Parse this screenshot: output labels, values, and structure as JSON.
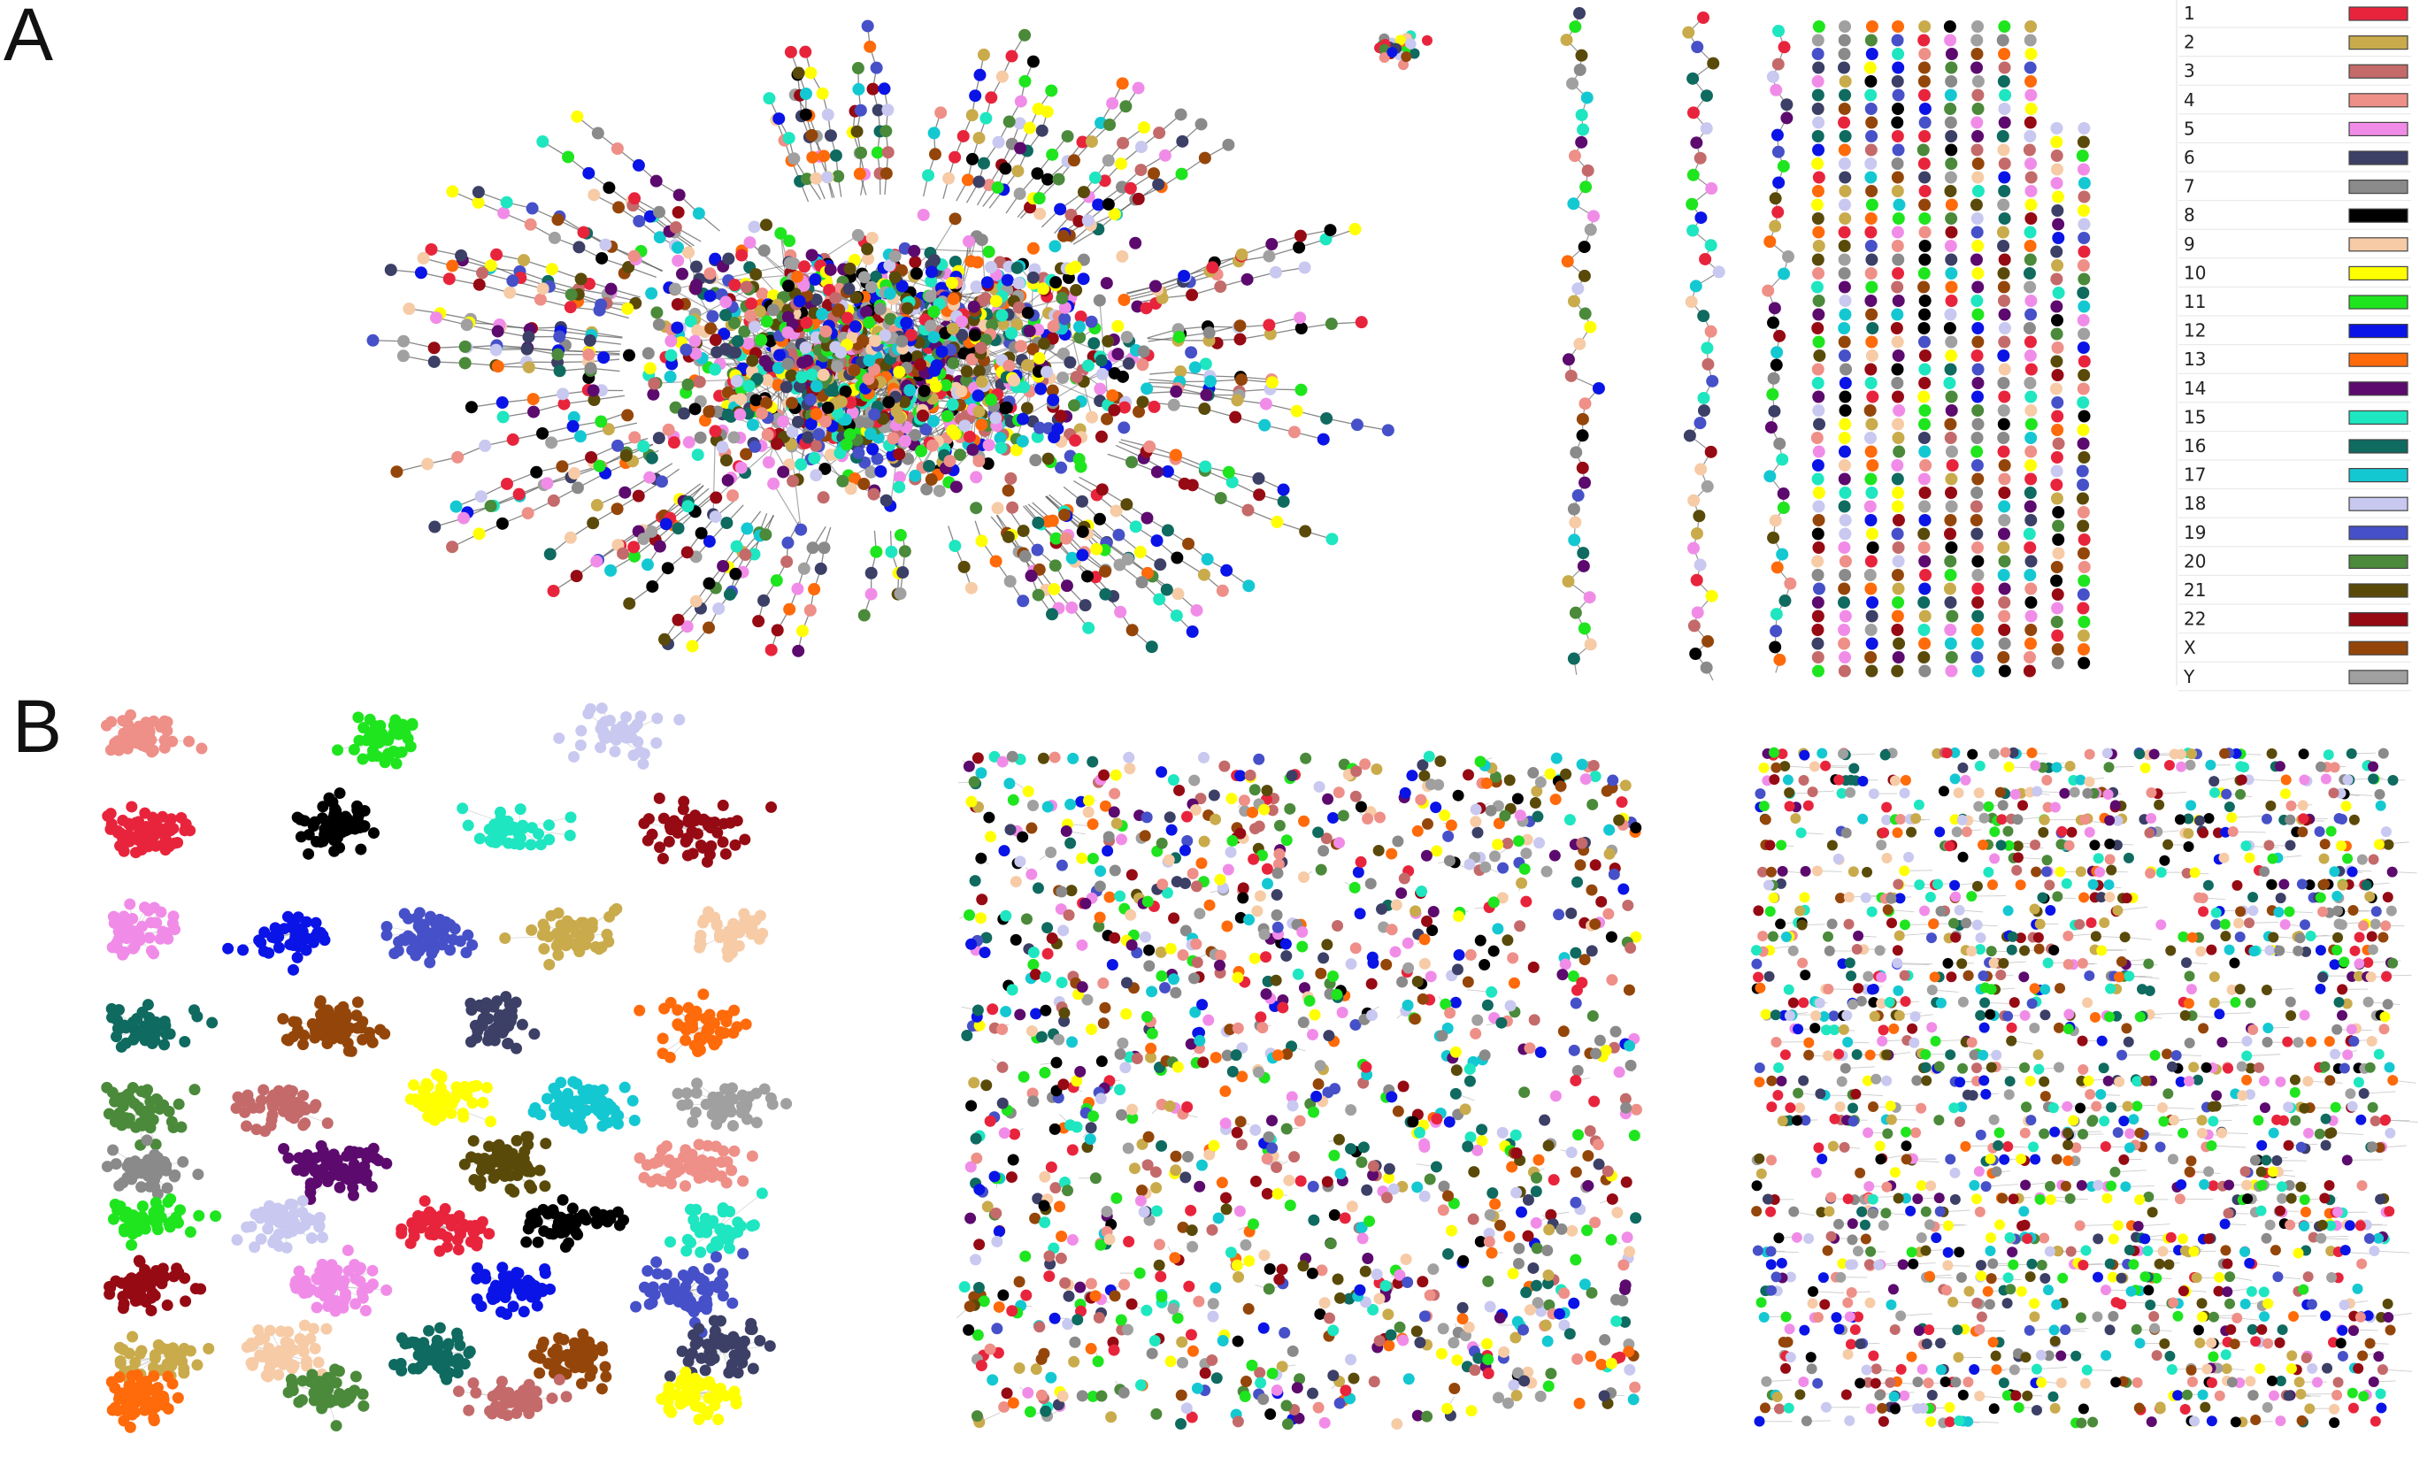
{
  "panels": {
    "a_label": "A",
    "b_label": "B"
  },
  "legend": [
    {
      "label": "1",
      "color": "#e8243c"
    },
    {
      "label": "2",
      "color": "#c9ab4c"
    },
    {
      "label": "3",
      "color": "#c46a6a"
    },
    {
      "label": "4",
      "color": "#ee8f88"
    },
    {
      "label": "5",
      "color": "#f08ce8"
    },
    {
      "label": "6",
      "color": "#3c3f66"
    },
    {
      "label": "7",
      "color": "#8a8a8a"
    },
    {
      "label": "8",
      "color": "#000000"
    },
    {
      "label": "9",
      "color": "#f6cba6"
    },
    {
      "label": "10",
      "color": "#ffff00"
    },
    {
      "label": "11",
      "color": "#1ee51e"
    },
    {
      "label": "12",
      "color": "#0a14e6"
    },
    {
      "label": "13",
      "color": "#ff6a0a"
    },
    {
      "label": "14",
      "color": "#5c0a6e"
    },
    {
      "label": "15",
      "color": "#1ee6c0"
    },
    {
      "label": "16",
      "color": "#0f6a60"
    },
    {
      "label": "17",
      "color": "#14c8d2"
    },
    {
      "label": "18",
      "color": "#c8c8f0"
    },
    {
      "label": "19",
      "color": "#4650c8"
    },
    {
      "label": "20",
      "color": "#4a8a3a"
    },
    {
      "label": "21",
      "color": "#5a4a0a"
    },
    {
      "label": "22",
      "color": "#960a14"
    },
    {
      "label": "X",
      "color": "#94460a"
    },
    {
      "label": "Y",
      "color": "#a0a0a0"
    }
  ]
}
